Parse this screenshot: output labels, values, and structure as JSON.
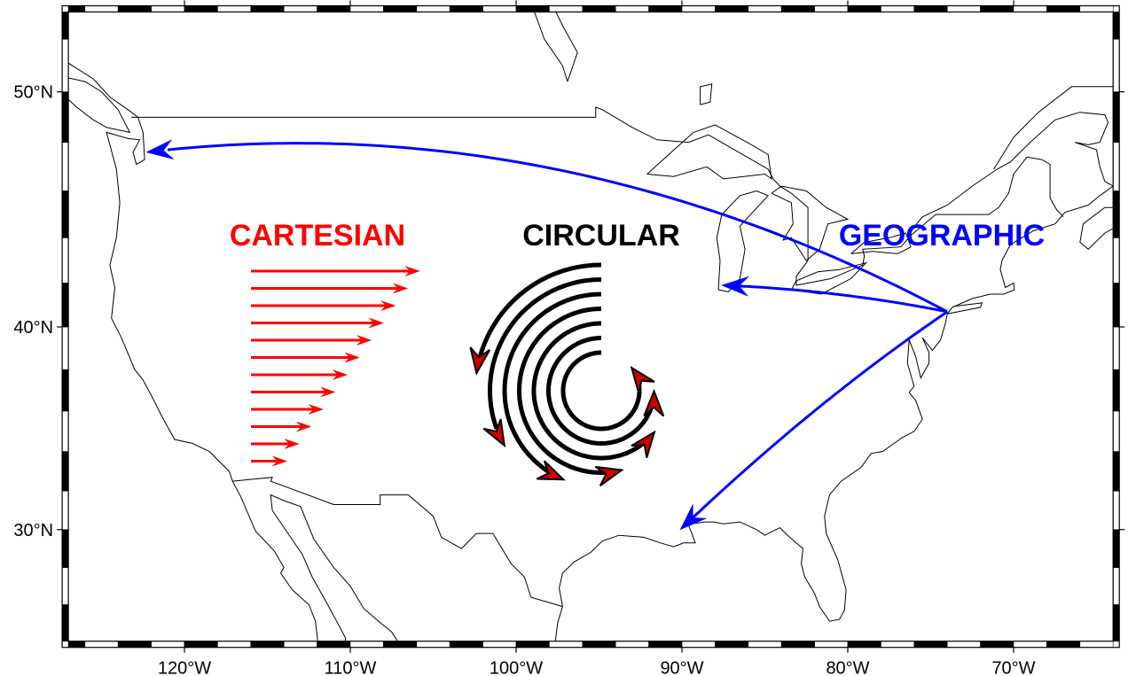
{
  "map": {
    "projection": "mercator",
    "region": {
      "west": -127,
      "east": -64,
      "south": 24,
      "north": 53
    },
    "frame_style": "fancy",
    "lon_labels": [
      "120°W",
      "110°W",
      "100°W",
      "90°W",
      "80°W",
      "70°W"
    ],
    "lon_label_values": [
      -120,
      -110,
      -100,
      -90,
      -80,
      -70
    ],
    "lat_labels": [
      "50°N",
      "40°N",
      "30°N"
    ],
    "lat_label_values": [
      50,
      40,
      30
    ]
  },
  "labels": {
    "cartesian": "CARTESIAN",
    "circular": "CIRCULAR",
    "geographic": "GEOGRAPHIC"
  },
  "colors": {
    "cartesian": "#ff0000",
    "circular": "#000000",
    "circular_head": "#cc0000",
    "geographic": "#0000ff",
    "coastline": "#000000"
  },
  "icons": {
    "vector_heads": "arrowhead"
  }
}
